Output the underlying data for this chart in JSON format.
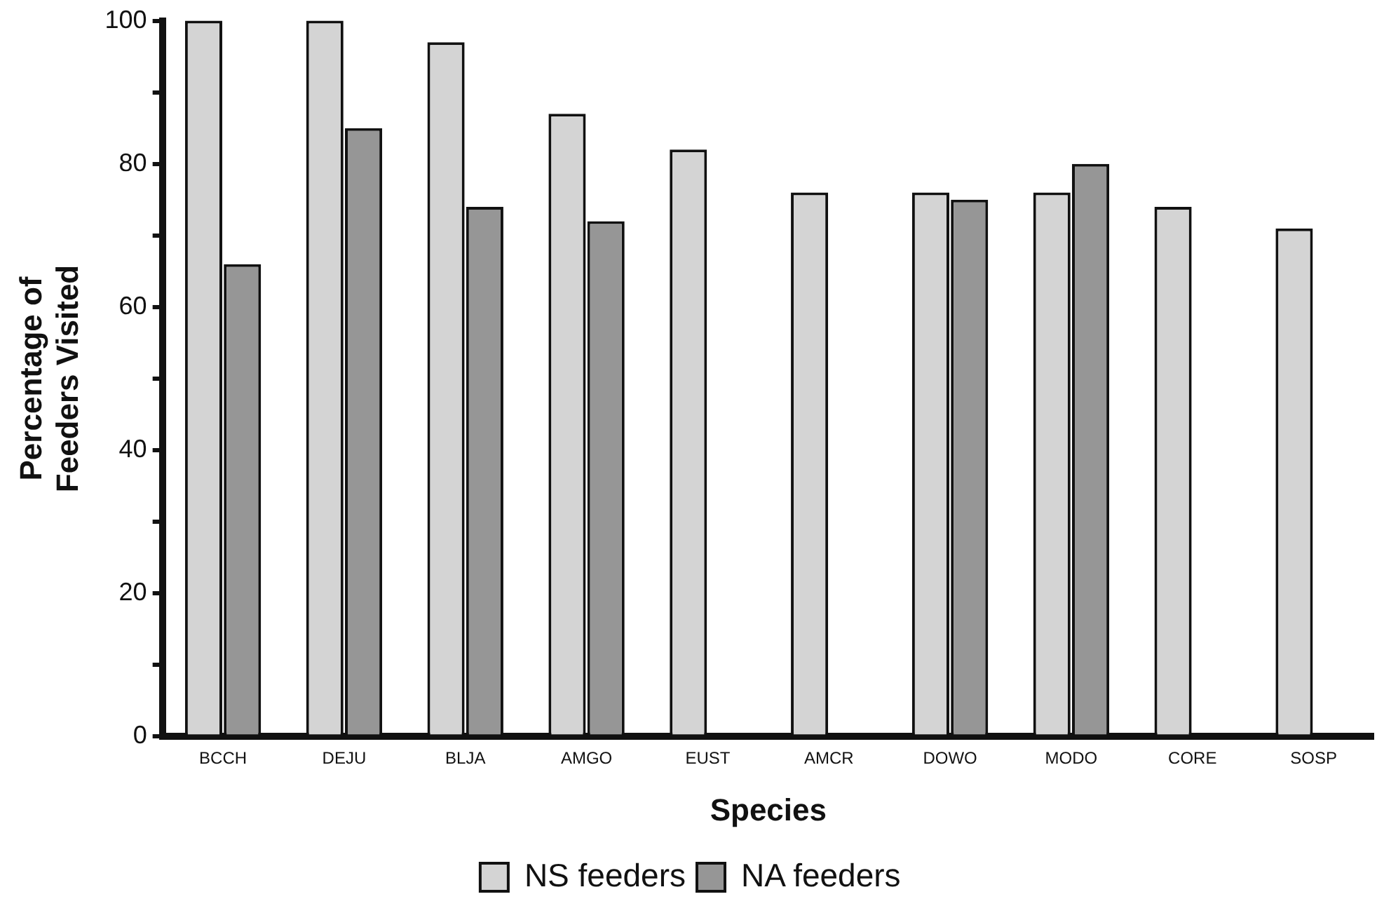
{
  "chart_data": {
    "type": "bar",
    "xlabel": "Species",
    "ylabel": "Percentage of Feeders Visited",
    "categories": [
      "BCCH",
      "DEJU",
      "BLJA",
      "AMGO",
      "EUST",
      "AMCR",
      "DOWO",
      "MODO",
      "CORE",
      "SOSP"
    ],
    "series": [
      {
        "name": "NS feeders",
        "color": "#d4d4d4",
        "values": [
          100,
          100,
          97,
          87,
          82,
          76,
          76,
          76,
          74,
          71
        ]
      },
      {
        "name": "NA feeders",
        "color": "#969696",
        "values": [
          66,
          85,
          74,
          72,
          null,
          null,
          75,
          80,
          null,
          null
        ]
      }
    ],
    "ylim": [
      0,
      100
    ],
    "yticks": [
      0,
      {
        "value": 10,
        "label": null
      },
      20,
      {
        "value": 30,
        "label": null
      },
      40,
      {
        "value": 50,
        "label": null
      },
      60,
      {
        "value": 70,
        "label": null
      },
      80,
      {
        "value": 90,
        "label": null
      },
      100
    ],
    "grid": false,
    "legend": "bottom"
  }
}
